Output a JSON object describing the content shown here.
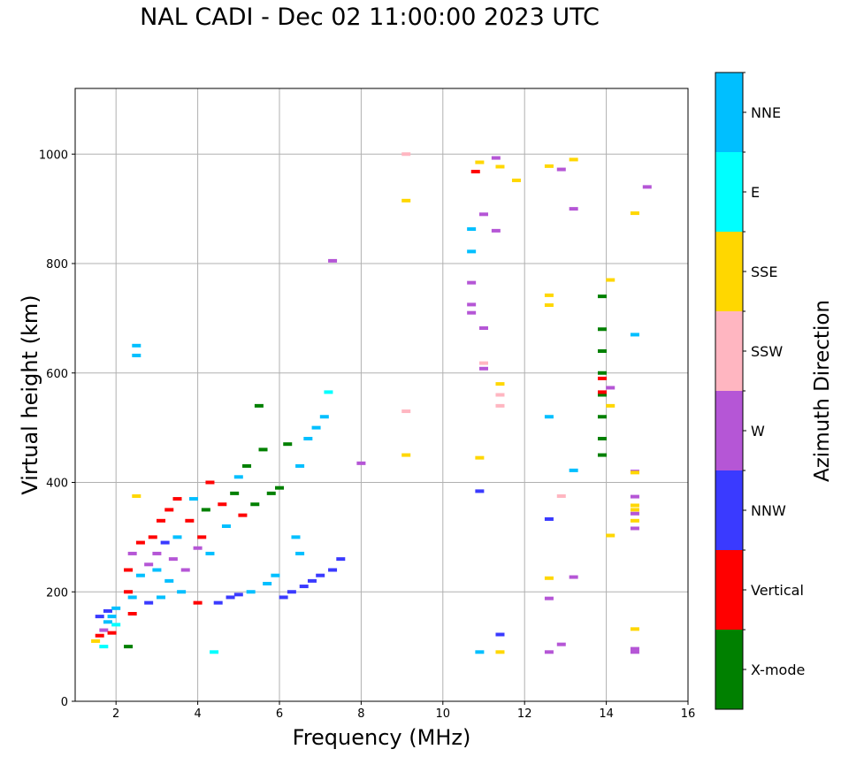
{
  "chart_data": {
    "type": "scatter",
    "title": "NAL CADI - Dec 02 11:00:00 2023 UTC",
    "xlabel": "Frequency (MHz)",
    "ylabel": "Virtual height (km)",
    "xlim": [
      1,
      16
    ],
    "ylim": [
      0,
      1120
    ],
    "xticks": [
      2,
      4,
      6,
      8,
      10,
      12,
      14,
      16
    ],
    "yticks": [
      0,
      200,
      400,
      600,
      800,
      1000
    ],
    "grid": true,
    "colorbar": {
      "label": "Azimuth Direction",
      "categories": [
        {
          "name": "X-mode",
          "color": "#008000"
        },
        {
          "name": "Vertical",
          "color": "#ff0000"
        },
        {
          "name": "NNW",
          "color": "#3a3aff"
        },
        {
          "name": "W",
          "color": "#b556d6"
        },
        {
          "name": "SSW",
          "color": "#ffb6c1"
        },
        {
          "name": "SSE",
          "color": "#ffd700"
        },
        {
          "name": "E",
          "color": "#00ffff"
        },
        {
          "name": "NNE",
          "color": "#00bfff"
        }
      ]
    },
    "points": [
      {
        "f": 1.5,
        "h": 110,
        "c": "SSE"
      },
      {
        "f": 1.6,
        "h": 120,
        "c": "Vertical"
      },
      {
        "f": 1.6,
        "h": 155,
        "c": "NNW"
      },
      {
        "f": 1.7,
        "h": 130,
        "c": "W"
      },
      {
        "f": 1.7,
        "h": 100,
        "c": "E"
      },
      {
        "f": 1.8,
        "h": 145,
        "c": "NNE"
      },
      {
        "f": 1.8,
        "h": 165,
        "c": "NNW"
      },
      {
        "f": 1.9,
        "h": 125,
        "c": "Vertical"
      },
      {
        "f": 1.9,
        "h": 155,
        "c": "NNE"
      },
      {
        "f": 2.0,
        "h": 170,
        "c": "NNE"
      },
      {
        "f": 2.0,
        "h": 140,
        "c": "E"
      },
      {
        "f": 2.3,
        "h": 100,
        "c": "X-mode"
      },
      {
        "f": 2.3,
        "h": 200,
        "c": "Vertical"
      },
      {
        "f": 2.3,
        "h": 240,
        "c": "Vertical"
      },
      {
        "f": 2.4,
        "h": 160,
        "c": "Vertical"
      },
      {
        "f": 2.4,
        "h": 190,
        "c": "NNE"
      },
      {
        "f": 2.4,
        "h": 270,
        "c": "W"
      },
      {
        "f": 2.5,
        "h": 650,
        "c": "NNE"
      },
      {
        "f": 2.5,
        "h": 632,
        "c": "NNE"
      },
      {
        "f": 2.5,
        "h": 375,
        "c": "SSE"
      },
      {
        "f": 2.6,
        "h": 230,
        "c": "NNE"
      },
      {
        "f": 2.6,
        "h": 290,
        "c": "Vertical"
      },
      {
        "f": 2.8,
        "h": 250,
        "c": "W"
      },
      {
        "f": 2.8,
        "h": 180,
        "c": "NNW"
      },
      {
        "f": 2.9,
        "h": 300,
        "c": "Vertical"
      },
      {
        "f": 3.0,
        "h": 270,
        "c": "W"
      },
      {
        "f": 3.0,
        "h": 240,
        "c": "NNE"
      },
      {
        "f": 3.1,
        "h": 330,
        "c": "Vertical"
      },
      {
        "f": 3.1,
        "h": 190,
        "c": "NNE"
      },
      {
        "f": 3.2,
        "h": 290,
        "c": "NNW"
      },
      {
        "f": 3.3,
        "h": 350,
        "c": "Vertical"
      },
      {
        "f": 3.3,
        "h": 220,
        "c": "NNE"
      },
      {
        "f": 3.4,
        "h": 260,
        "c": "W"
      },
      {
        "f": 3.5,
        "h": 370,
        "c": "Vertical"
      },
      {
        "f": 3.5,
        "h": 300,
        "c": "NNE"
      },
      {
        "f": 3.6,
        "h": 200,
        "c": "NNE"
      },
      {
        "f": 3.7,
        "h": 240,
        "c": "W"
      },
      {
        "f": 3.8,
        "h": 330,
        "c": "Vertical"
      },
      {
        "f": 3.9,
        "h": 370,
        "c": "NNE"
      },
      {
        "f": 4.0,
        "h": 280,
        "c": "W"
      },
      {
        "f": 4.0,
        "h": 180,
        "c": "Vertical"
      },
      {
        "f": 4.1,
        "h": 300,
        "c": "Vertical"
      },
      {
        "f": 4.2,
        "h": 350,
        "c": "X-mode"
      },
      {
        "f": 4.3,
        "h": 400,
        "c": "Vertical"
      },
      {
        "f": 4.3,
        "h": 270,
        "c": "NNE"
      },
      {
        "f": 4.4,
        "h": 90,
        "c": "E"
      },
      {
        "f": 4.5,
        "h": 180,
        "c": "NNW"
      },
      {
        "f": 4.6,
        "h": 360,
        "c": "Vertical"
      },
      {
        "f": 4.7,
        "h": 320,
        "c": "NNE"
      },
      {
        "f": 4.8,
        "h": 190,
        "c": "NNW"
      },
      {
        "f": 4.9,
        "h": 380,
        "c": "X-mode"
      },
      {
        "f": 5.0,
        "h": 410,
        "c": "NNE"
      },
      {
        "f": 5.0,
        "h": 195,
        "c": "NNW"
      },
      {
        "f": 5.1,
        "h": 340,
        "c": "Vertical"
      },
      {
        "f": 5.2,
        "h": 430,
        "c": "X-mode"
      },
      {
        "f": 5.3,
        "h": 200,
        "c": "NNE"
      },
      {
        "f": 5.4,
        "h": 360,
        "c": "X-mode"
      },
      {
        "f": 5.5,
        "h": 540,
        "c": "X-mode"
      },
      {
        "f": 5.6,
        "h": 460,
        "c": "X-mode"
      },
      {
        "f": 5.7,
        "h": 215,
        "c": "NNE"
      },
      {
        "f": 5.8,
        "h": 380,
        "c": "X-mode"
      },
      {
        "f": 5.9,
        "h": 230,
        "c": "NNE"
      },
      {
        "f": 6.0,
        "h": 390,
        "c": "X-mode"
      },
      {
        "f": 6.1,
        "h": 190,
        "c": "NNW"
      },
      {
        "f": 6.2,
        "h": 470,
        "c": "X-mode"
      },
      {
        "f": 6.3,
        "h": 200,
        "c": "NNW"
      },
      {
        "f": 6.4,
        "h": 300,
        "c": "NNE"
      },
      {
        "f": 6.5,
        "h": 430,
        "c": "NNE"
      },
      {
        "f": 6.5,
        "h": 270,
        "c": "NNE"
      },
      {
        "f": 6.6,
        "h": 210,
        "c": "NNW"
      },
      {
        "f": 6.7,
        "h": 480,
        "c": "NNE"
      },
      {
        "f": 6.8,
        "h": 220,
        "c": "NNW"
      },
      {
        "f": 6.9,
        "h": 500,
        "c": "NNE"
      },
      {
        "f": 7.0,
        "h": 230,
        "c": "NNW"
      },
      {
        "f": 7.1,
        "h": 520,
        "c": "NNE"
      },
      {
        "f": 7.2,
        "h": 565,
        "c": "E"
      },
      {
        "f": 7.3,
        "h": 240,
        "c": "NNW"
      },
      {
        "f": 7.5,
        "h": 260,
        "c": "NNW"
      },
      {
        "f": 7.3,
        "h": 805,
        "c": "W"
      },
      {
        "f": 8.0,
        "h": 435,
        "c": "W"
      },
      {
        "f": 9.1,
        "h": 1000,
        "c": "SSW"
      },
      {
        "f": 9.1,
        "h": 915,
        "c": "SSE"
      },
      {
        "f": 9.1,
        "h": 530,
        "c": "SSW"
      },
      {
        "f": 9.1,
        "h": 450,
        "c": "SSE"
      },
      {
        "f": 10.8,
        "h": 968,
        "c": "Vertical"
      },
      {
        "f": 10.9,
        "h": 985,
        "c": "SSE"
      },
      {
        "f": 11.0,
        "h": 890,
        "c": "W"
      },
      {
        "f": 10.7,
        "h": 863,
        "c": "NNE"
      },
      {
        "f": 10.7,
        "h": 822,
        "c": "NNE"
      },
      {
        "f": 10.7,
        "h": 765,
        "c": "W"
      },
      {
        "f": 10.7,
        "h": 725,
        "c": "W"
      },
      {
        "f": 10.7,
        "h": 710,
        "c": "W"
      },
      {
        "f": 11.0,
        "h": 682,
        "c": "W"
      },
      {
        "f": 11.0,
        "h": 618,
        "c": "SSW"
      },
      {
        "f": 11.0,
        "h": 608,
        "c": "W"
      },
      {
        "f": 10.9,
        "h": 445,
        "c": "SSE"
      },
      {
        "f": 10.9,
        "h": 384,
        "c": "NNW"
      },
      {
        "f": 10.9,
        "h": 90,
        "c": "NNE"
      },
      {
        "f": 11.3,
        "h": 993,
        "c": "W"
      },
      {
        "f": 11.3,
        "h": 860,
        "c": "W"
      },
      {
        "f": 11.4,
        "h": 977,
        "c": "SSE"
      },
      {
        "f": 11.4,
        "h": 580,
        "c": "SSE"
      },
      {
        "f": 11.4,
        "h": 560,
        "c": "SSW"
      },
      {
        "f": 11.4,
        "h": 540,
        "c": "SSW"
      },
      {
        "f": 11.4,
        "h": 122,
        "c": "NNW"
      },
      {
        "f": 11.4,
        "h": 90,
        "c": "SSE"
      },
      {
        "f": 11.8,
        "h": 952,
        "c": "SSE"
      },
      {
        "f": 12.6,
        "h": 978,
        "c": "SSE"
      },
      {
        "f": 12.6,
        "h": 742,
        "c": "SSE"
      },
      {
        "f": 12.6,
        "h": 724,
        "c": "SSE"
      },
      {
        "f": 12.6,
        "h": 520,
        "c": "NNE"
      },
      {
        "f": 12.6,
        "h": 333,
        "c": "NNW"
      },
      {
        "f": 12.6,
        "h": 225,
        "c": "SSE"
      },
      {
        "f": 12.6,
        "h": 188,
        "c": "W"
      },
      {
        "f": 12.6,
        "h": 90,
        "c": "W"
      },
      {
        "f": 12.9,
        "h": 972,
        "c": "W"
      },
      {
        "f": 12.9,
        "h": 375,
        "c": "SSW"
      },
      {
        "f": 12.9,
        "h": 104,
        "c": "W"
      },
      {
        "f": 13.2,
        "h": 990,
        "c": "SSE"
      },
      {
        "f": 13.2,
        "h": 900,
        "c": "W"
      },
      {
        "f": 13.2,
        "h": 422,
        "c": "NNE"
      },
      {
        "f": 13.2,
        "h": 227,
        "c": "W"
      },
      {
        "f": 13.9,
        "h": 740,
        "c": "X-mode"
      },
      {
        "f": 13.9,
        "h": 680,
        "c": "X-mode"
      },
      {
        "f": 13.9,
        "h": 640,
        "c": "X-mode"
      },
      {
        "f": 13.9,
        "h": 600,
        "c": "X-mode"
      },
      {
        "f": 13.9,
        "h": 590,
        "c": "Vertical"
      },
      {
        "f": 13.9,
        "h": 560,
        "c": "X-mode"
      },
      {
        "f": 13.9,
        "h": 565,
        "c": "Vertical"
      },
      {
        "f": 13.9,
        "h": 520,
        "c": "X-mode"
      },
      {
        "f": 13.9,
        "h": 480,
        "c": "X-mode"
      },
      {
        "f": 13.9,
        "h": 450,
        "c": "X-mode"
      },
      {
        "f": 14.1,
        "h": 770,
        "c": "SSE"
      },
      {
        "f": 14.1,
        "h": 573,
        "c": "W"
      },
      {
        "f": 14.1,
        "h": 540,
        "c": "SSE"
      },
      {
        "f": 14.1,
        "h": 303,
        "c": "SSE"
      },
      {
        "f": 14.7,
        "h": 892,
        "c": "SSE"
      },
      {
        "f": 14.7,
        "h": 670,
        "c": "NNE"
      },
      {
        "f": 14.7,
        "h": 420,
        "c": "W"
      },
      {
        "f": 14.7,
        "h": 418,
        "c": "SSE"
      },
      {
        "f": 14.7,
        "h": 374,
        "c": "W"
      },
      {
        "f": 14.7,
        "h": 358,
        "c": "SSE"
      },
      {
        "f": 14.7,
        "h": 350,
        "c": "SSE"
      },
      {
        "f": 14.7,
        "h": 343,
        "c": "W"
      },
      {
        "f": 14.7,
        "h": 330,
        "c": "SSE"
      },
      {
        "f": 14.7,
        "h": 316,
        "c": "W"
      },
      {
        "f": 14.7,
        "h": 132,
        "c": "SSE"
      },
      {
        "f": 14.7,
        "h": 96,
        "c": "W"
      },
      {
        "f": 14.7,
        "h": 90,
        "c": "W"
      },
      {
        "f": 15.0,
        "h": 940,
        "c": "W"
      }
    ]
  }
}
